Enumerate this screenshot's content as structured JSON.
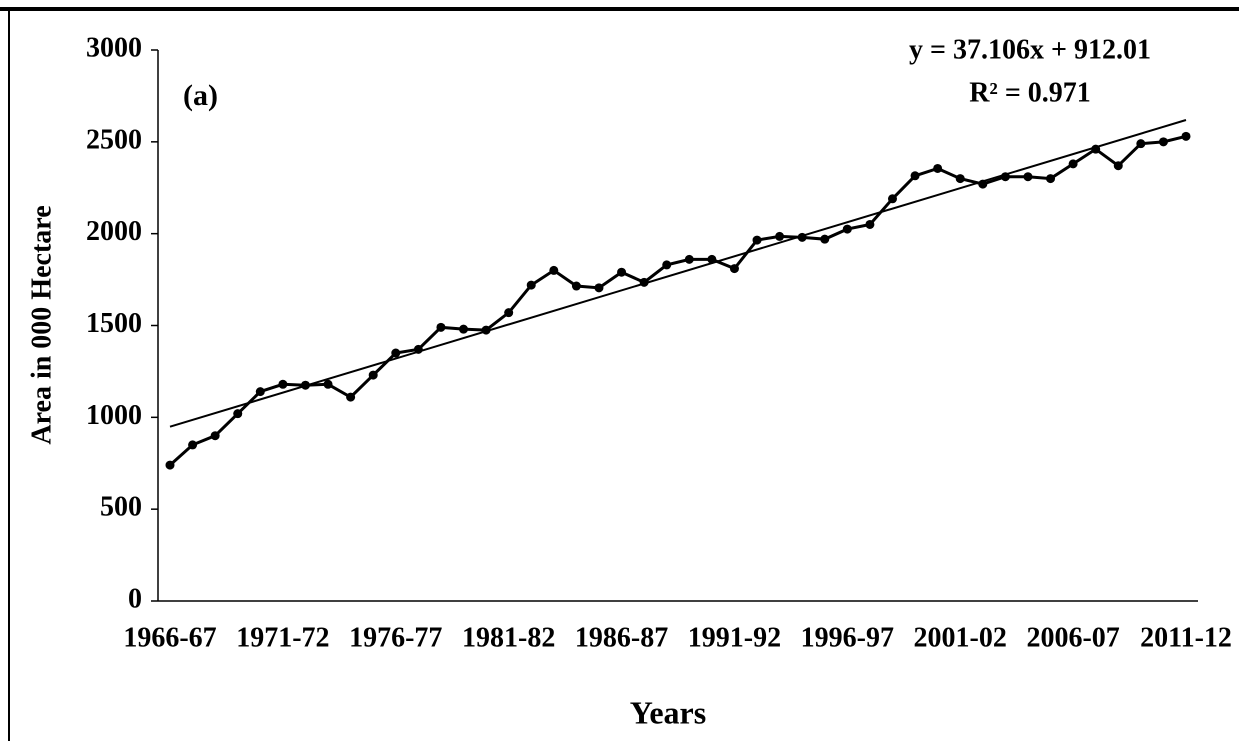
{
  "chart_data": {
    "type": "line",
    "annotation": "(a)",
    "x_label": "Years",
    "y_label": "Area in 000 Hectare",
    "categories": [
      "1966-67",
      null,
      null,
      null,
      null,
      "1971-72",
      null,
      null,
      null,
      null,
      "1976-77",
      null,
      null,
      null,
      null,
      "1981-82",
      null,
      null,
      null,
      null,
      "1986-87",
      null,
      null,
      null,
      null,
      "1991-92",
      null,
      null,
      null,
      null,
      "1996-97",
      null,
      null,
      null,
      null,
      "2001-02",
      null,
      null,
      null,
      null,
      "2006-07",
      null,
      null,
      null,
      null,
      "2011-12"
    ],
    "values": [
      740,
      850,
      900,
      1020,
      1140,
      1180,
      1175,
      1180,
      1110,
      1230,
      1350,
      1370,
      1490,
      1480,
      1475,
      1570,
      1720,
      1800,
      1715,
      1705,
      1790,
      1735,
      1830,
      1860,
      1860,
      1810,
      1965,
      1985,
      1980,
      1970,
      2025,
      2050,
      2190,
      2315,
      2355,
      2300,
      2270,
      2310,
      2310,
      2300,
      2380,
      2460,
      2370,
      2490,
      2500,
      2530
    ],
    "color": "#000000",
    "trendline": {
      "equation": "y = 37.106x + 912.01",
      "slope": 37.106,
      "intercept": 912.01,
      "r2_label": "R² = 0.971",
      "r2": 0.971
    },
    "ylim": [
      0,
      3000
    ],
    "yticks": [
      0,
      500,
      1000,
      1500,
      2000,
      2500,
      3000
    ],
    "grid": false
  }
}
